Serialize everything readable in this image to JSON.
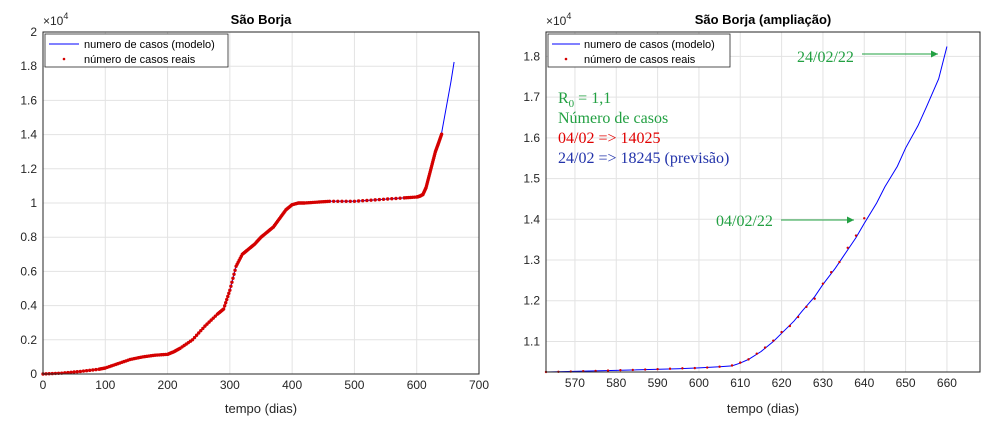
{
  "chart_data": [
    {
      "type": "line",
      "title": "São Borja",
      "xlabel": "tempo (dias)",
      "ylabel": "",
      "exponent_label": "×10",
      "exponent_power": "4",
      "xlim": [
        0,
        700
      ],
      "ylim": [
        0,
        20000
      ],
      "xticks": [
        "0",
        "100",
        "200",
        "300",
        "400",
        "500",
        "600",
        "700"
      ],
      "yticks": [
        "0",
        "0.2",
        "0.4",
        "0.6",
        "0.8",
        "1",
        "1.2",
        "1.4",
        "1.6",
        "1.8",
        "2"
      ],
      "grid": true,
      "legend": {
        "placement": "top-left",
        "entries": [
          "numero de casos (modelo)",
          "número de casos reais"
        ]
      },
      "series": [
        {
          "name": "numero de casos (modelo)",
          "style": "line",
          "color": "#0000ff",
          "x": [
            0,
            30,
            60,
            90,
            100,
            120,
            140,
            160,
            180,
            200,
            210,
            220,
            240,
            260,
            280,
            290,
            300,
            310,
            320,
            330,
            340,
            350,
            360,
            370,
            380,
            390,
            400,
            410,
            420,
            440,
            460,
            500,
            540,
            580,
            600,
            605,
            610,
            615,
            620,
            625,
            630,
            635,
            640,
            645,
            650,
            655,
            660
          ],
          "y": [
            0,
            50,
            150,
            280,
            350,
            600,
            850,
            1000,
            1100,
            1150,
            1300,
            1500,
            2000,
            2800,
            3500,
            3800,
            4900,
            6300,
            7000,
            7300,
            7600,
            8000,
            8300,
            8600,
            9100,
            9600,
            9900,
            10000,
            10000,
            10050,
            10100,
            10100,
            10200,
            10300,
            10350,
            10400,
            10500,
            10900,
            11600,
            12300,
            13000,
            13500,
            14100,
            15100,
            16100,
            17100,
            18245
          ]
        },
        {
          "name": "número de casos reais",
          "style": "points",
          "color": "#d40000",
          "x": [
            0,
            30,
            60,
            90,
            100,
            120,
            140,
            160,
            180,
            200,
            210,
            220,
            240,
            260,
            280,
            290,
            300,
            310,
            320,
            330,
            340,
            350,
            360,
            370,
            380,
            390,
            400,
            410,
            420,
            440,
            460,
            500,
            540,
            580,
            600,
            605,
            610,
            615,
            620,
            625,
            630,
            635,
            640
          ],
          "y": [
            0,
            50,
            150,
            280,
            350,
            600,
            850,
            1000,
            1100,
            1150,
            1300,
            1500,
            2000,
            2800,
            3500,
            3800,
            4900,
            6300,
            7000,
            7300,
            7600,
            8000,
            8300,
            8600,
            9100,
            9600,
            9900,
            10000,
            10000,
            10050,
            10100,
            10100,
            10200,
            10300,
            10350,
            10400,
            10500,
            10900,
            11600,
            12300,
            13000,
            13500,
            14025
          ]
        }
      ]
    },
    {
      "type": "line",
      "title": "São Borja (ampliação)",
      "xlabel": "tempo (dias)",
      "ylabel": "",
      "exponent_label": "×10",
      "exponent_power": "4",
      "xlim": [
        563,
        668
      ],
      "ylim": [
        10250,
        18600
      ],
      "xticks": [
        "570",
        "580",
        "590",
        "600",
        "610",
        "620",
        "630",
        "640",
        "650",
        "660"
      ],
      "yticks": [
        "1.1",
        "1.2",
        "1.3",
        "1.4",
        "1.5",
        "1.6",
        "1.7",
        "1.8"
      ],
      "grid": true,
      "legend": {
        "placement": "top-left",
        "entries": [
          "numero de casos (modelo)",
          "número de casos reais"
        ]
      },
      "series": [
        {
          "name": "numero de casos (modelo)",
          "style": "line",
          "color": "#0000ff",
          "x": [
            563,
            580,
            595,
            600,
            605,
            608,
            610,
            612,
            615,
            618,
            620,
            623,
            625,
            628,
            630,
            633,
            635,
            638,
            640,
            643,
            645,
            648,
            650,
            653,
            655,
            658,
            660
          ],
          "y": [
            10250,
            10290,
            10330,
            10350,
            10380,
            10400,
            10470,
            10560,
            10750,
            11000,
            11200,
            11500,
            11750,
            12100,
            12400,
            12800,
            13100,
            13550,
            13900,
            14400,
            14800,
            15300,
            15750,
            16300,
            16750,
            17450,
            18245
          ]
        },
        {
          "name": "número de casos reais",
          "style": "points",
          "color": "#d40000",
          "x": [
            563,
            566,
            569,
            572,
            575,
            578,
            581,
            584,
            587,
            590,
            593,
            596,
            599,
            602,
            605,
            608,
            610,
            612,
            614,
            616,
            618,
            620,
            622,
            624,
            626,
            628,
            630,
            632,
            634,
            636,
            638,
            640
          ],
          "y": [
            10250,
            10255,
            10260,
            10270,
            10275,
            10285,
            10295,
            10300,
            10310,
            10320,
            10330,
            10340,
            10345,
            10360,
            10380,
            10410,
            10480,
            10560,
            10700,
            10850,
            11020,
            11230,
            11380,
            11600,
            11850,
            12050,
            12420,
            12700,
            12950,
            13300,
            13600,
            14025
          ]
        }
      ],
      "annotations": [
        {
          "lines": [
            "R",
            "0",
            " = 1,1"
          ],
          "color": "#22a042"
        },
        {
          "text": "Número de casos",
          "color": "#22a042"
        },
        {
          "text": "04/02 => 14025",
          "color": "#e00000"
        },
        {
          "text": "24/02 => 18245 (previsão)",
          "color": "#2233aa"
        },
        {
          "text": "04/02/22",
          "color": "#22a042",
          "arrow_to": [
            640,
            14025
          ]
        },
        {
          "text": "24/02/22",
          "color": "#22a042",
          "arrow_to": [
            660,
            18245
          ]
        }
      ]
    }
  ]
}
